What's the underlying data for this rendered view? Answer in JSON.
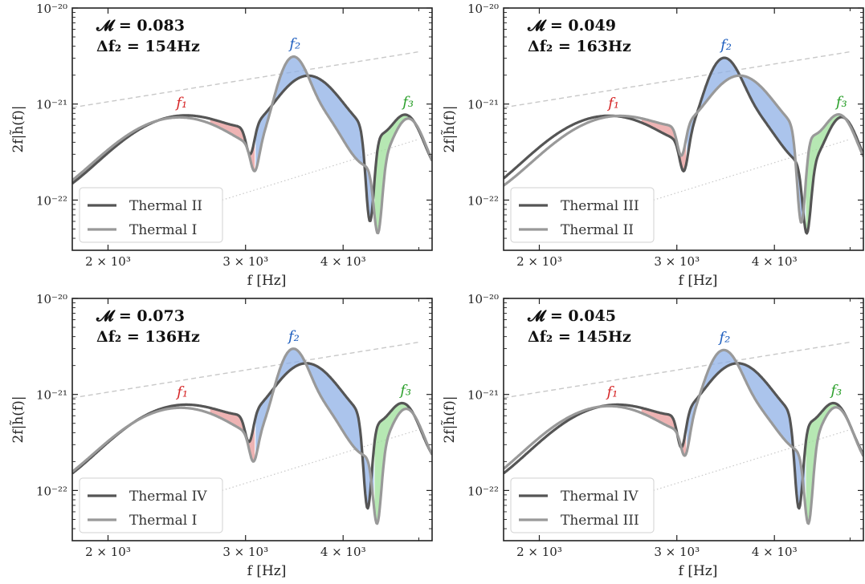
{
  "figure": {
    "x_tick_labels": [
      "2 × 10³",
      "3 × 10³",
      "4 × 10³"
    ],
    "x_label": "f [Hz]",
    "y_tick_labels": [
      "10⁻²⁰",
      "10⁻²¹",
      "10⁻²²"
    ],
    "y_label": "2f|h̃(f)|",
    "peak_labels": [
      "f₁",
      "f₂",
      "f₃"
    ],
    "colors": {
      "dark_curve": "#555555",
      "light_curve": "#999999",
      "f1_fill": "#e89a9a",
      "f2_fill": "#8fb0e6",
      "f3_fill": "#9ee09a",
      "f1_label": "#d62728",
      "f2_label": "#1f5fbf",
      "f3_label": "#2ca02c",
      "reference_lines": "#c8c8c8"
    }
  },
  "chart_data": [
    {
      "type": "line",
      "panel": "top-left",
      "annotation_line1": "𝓜 = 0.083",
      "annotation_line2": "Δf₂ = 154Hz",
      "xlabel": "f [Hz]",
      "ylabel": "2f|h̃(f)|",
      "xscale": "log",
      "yscale": "log",
      "xlim": [
        1800,
        5200
      ],
      "ylim": [
        3e-23,
        1e-20
      ],
      "legend_position": "lower-left",
      "series": [
        {
          "name": "Thermal II",
          "color": "#555555",
          "f1": 2500,
          "f2": 3600,
          "f3": 4820,
          "a1": 6.4e-22,
          "a2": 1.35e-21,
          "a3": 4.4e-22,
          "w2": 0.07,
          "dip1": [
            3040,
            3e-22
          ],
          "dip2": [
            4330,
            6e-23
          ]
        },
        {
          "name": "Thermal I",
          "color": "#999999",
          "f1": 2460,
          "f2": 3446,
          "f3": 4850,
          "a1": 6.1e-22,
          "a2": 2.3e-21,
          "a3": 4.6e-22,
          "w2": 0.035,
          "dip1": [
            3080,
            2e-22
          ],
          "dip2": [
            4430,
            4.5e-23
          ]
        }
      ]
    },
    {
      "type": "line",
      "panel": "top-right",
      "annotation_line1": "𝓜 = 0.049",
      "annotation_line2": "Δf₂ = 163Hz",
      "xlabel": "f [Hz]",
      "ylabel": "2f|h̃(f)|",
      "xscale": "log",
      "yscale": "log",
      "xlim": [
        1800,
        5200
      ],
      "ylim": [
        3e-23,
        1e-20
      ],
      "legend_position": "lower-left",
      "series": [
        {
          "name": "Thermal III",
          "color": "#555555",
          "f1": 2450,
          "f2": 3440,
          "f3": 4880,
          "a1": 6.4e-22,
          "a2": 2.2e-21,
          "a3": 4.8e-22,
          "w2": 0.04,
          "dip1": [
            3060,
            2e-22
          ],
          "dip2": [
            4400,
            4.5e-23
          ]
        },
        {
          "name": "Thermal II",
          "color": "#999999",
          "f1": 2520,
          "f2": 3603,
          "f3": 4850,
          "a1": 6.3e-22,
          "a2": 1.35e-21,
          "a3": 4.5e-22,
          "w2": 0.07,
          "dip1": [
            3040,
            2.9e-22
          ],
          "dip2": [
            4330,
            5.8e-23
          ]
        }
      ]
    },
    {
      "type": "line",
      "panel": "bottom-left",
      "annotation_line1": "𝓜 = 0.073",
      "annotation_line2": "Δf₂ = 136Hz",
      "xlabel": "f [Hz]",
      "ylabel": "2f|h̃(f)|",
      "xscale": "log",
      "yscale": "log",
      "xlim": [
        1800,
        5200
      ],
      "ylim": [
        3e-23,
        1e-20
      ],
      "legend_position": "lower-left",
      "series": [
        {
          "name": "Thermal IV",
          "color": "#555555",
          "f1": 2500,
          "f2": 3580,
          "f3": 4780,
          "a1": 6.6e-22,
          "a2": 1.45e-21,
          "a3": 4.6e-22,
          "w2": 0.07,
          "dip1": [
            3030,
            3.2e-22
          ],
          "dip2": [
            4300,
            6.5e-23
          ]
        },
        {
          "name": "Thermal I",
          "color": "#999999",
          "f1": 2470,
          "f2": 3444,
          "f3": 4820,
          "a1": 6.1e-22,
          "a2": 2.2e-21,
          "a3": 4.6e-22,
          "w2": 0.035,
          "dip1": [
            3070,
            2e-22
          ],
          "dip2": [
            4420,
            4.5e-23
          ]
        }
      ]
    },
    {
      "type": "line",
      "panel": "bottom-right",
      "annotation_line1": "𝓜 = 0.045",
      "annotation_line2": "Δf₂ = 145Hz",
      "xlabel": "f [Hz]",
      "ylabel": "2f|h̃(f)|",
      "xscale": "log",
      "yscale": "log",
      "xlim": [
        1800,
        5200
      ],
      "ylim": [
        3e-23,
        1e-20
      ],
      "legend_position": "lower-left",
      "series": [
        {
          "name": "Thermal IV",
          "color": "#555555",
          "f1": 2500,
          "f2": 3580,
          "f3": 4780,
          "a1": 6.6e-22,
          "a2": 1.45e-21,
          "a3": 4.6e-22,
          "w2": 0.07,
          "dip1": [
            3040,
            2.8e-22
          ],
          "dip2": [
            4300,
            6.5e-23
          ]
        },
        {
          "name": "Thermal III",
          "color": "#999999",
          "f1": 2450,
          "f2": 3435,
          "f3": 4800,
          "a1": 6.4e-22,
          "a2": 2.1e-21,
          "a3": 4.8e-22,
          "w2": 0.04,
          "dip1": [
            3070,
            2.3e-22
          ],
          "dip2": [
            4420,
            4.5e-23
          ]
        }
      ]
    }
  ]
}
